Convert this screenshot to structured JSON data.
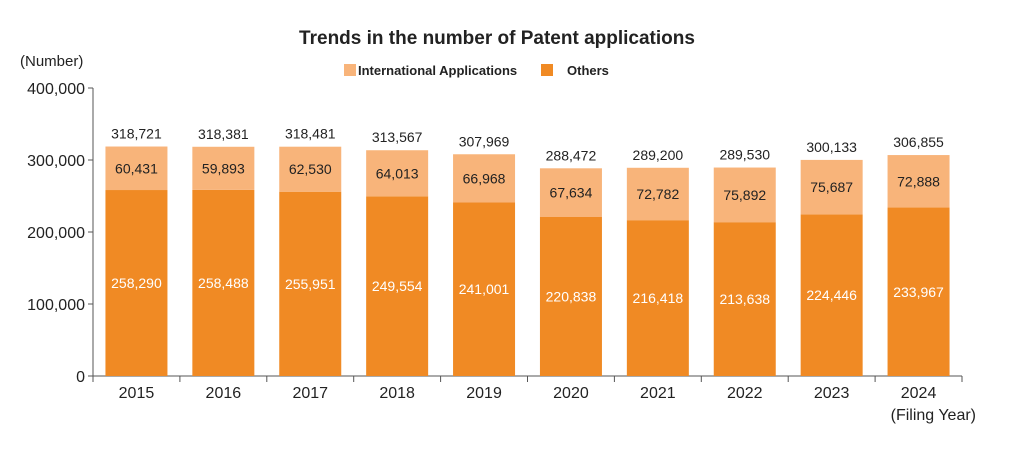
{
  "chart_data": {
    "type": "bar",
    "stacked": true,
    "title": "Trends in the number of Patent applications",
    "ylabel": "(Number)",
    "xlabel": "(Filing Year)",
    "ylim": [
      0,
      400000
    ],
    "yticks": [
      "0",
      "100,000",
      "200,000",
      "300,000",
      "400,000"
    ],
    "ytick_values": [
      0,
      100000,
      200000,
      300000,
      400000
    ],
    "categories": [
      "2015",
      "2016",
      "2017",
      "2018",
      "2019",
      "2020",
      "2021",
      "2022",
      "2023",
      "2024"
    ],
    "series": [
      {
        "name": "Others",
        "color": "#f08a24",
        "values": [
          258290,
          258488,
          255951,
          249554,
          241001,
          220838,
          216418,
          213638,
          224446,
          233967
        ],
        "labels": [
          "258,290",
          "258,488",
          "255,951",
          "249,554",
          "241,001",
          "220,838",
          "216,418",
          "213,638",
          "224,446",
          "233,967"
        ]
      },
      {
        "name": "International Applications",
        "color": "#f8b47a",
        "values": [
          60431,
          59893,
          62530,
          64013,
          66968,
          67634,
          72782,
          75892,
          75687,
          72888
        ],
        "labels": [
          "60,431",
          "59,893",
          "62,530",
          "64,013",
          "66,968",
          "67,634",
          "72,782",
          "75,892",
          "75,687",
          "72,888"
        ]
      }
    ],
    "totals": [
      318721,
      318381,
      318481,
      313567,
      307969,
      288472,
      289200,
      289530,
      300133,
      306855
    ],
    "total_labels": [
      "318,721",
      "318,381",
      "318,481",
      "313,567",
      "307,969",
      "288,472",
      "289,200",
      "289,530",
      "300,133",
      "306,855"
    ],
    "legend_order": [
      "International Applications",
      "Others"
    ],
    "legend_position": "top-center",
    "grid": false
  }
}
